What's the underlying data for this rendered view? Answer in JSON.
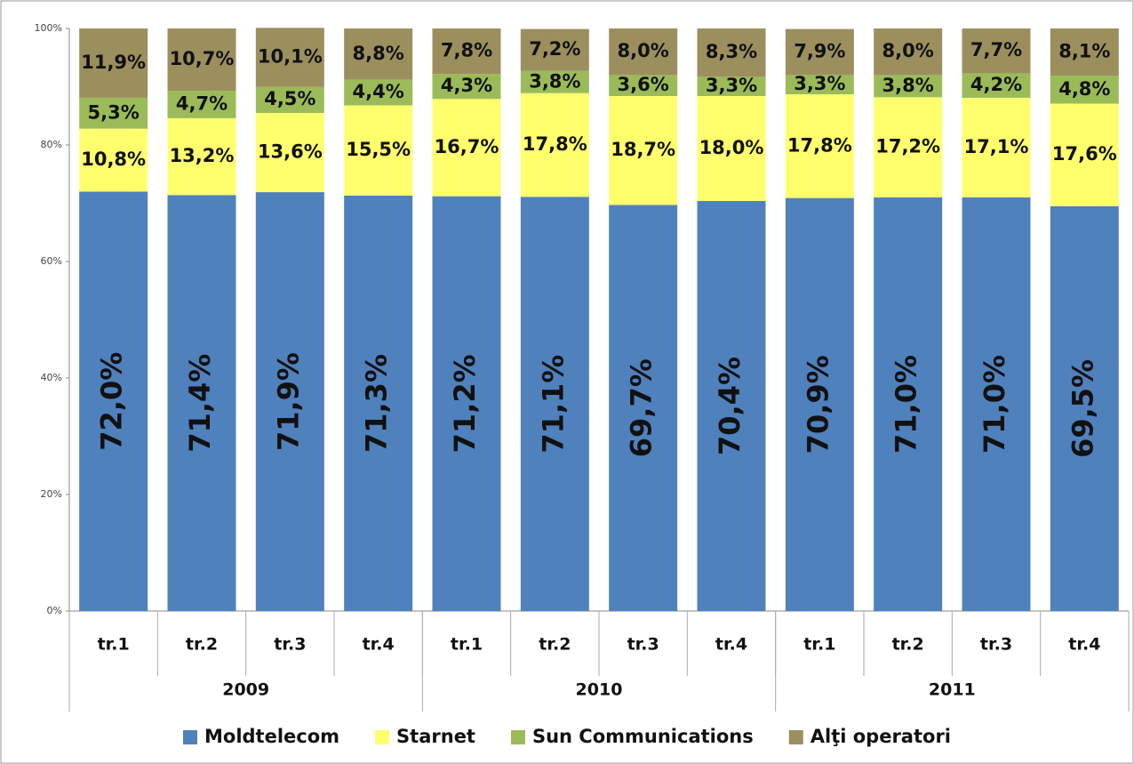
{
  "chart_data": {
    "type": "stacked_bar",
    "categories": [
      "tr.1",
      "tr.2",
      "tr.3",
      "tr.4",
      "tr.1",
      "tr.2",
      "tr.3",
      "tr.4",
      "tr.1",
      "tr.2",
      "tr.3",
      "tr.4"
    ],
    "group_labels": [
      "2009",
      "2010",
      "2011"
    ],
    "ylim": [
      0,
      100
    ],
    "yticks": [
      {
        "value": 0,
        "label": "0%"
      },
      {
        "value": 20,
        "label": "20%"
      },
      {
        "value": 40,
        "label": "40%"
      },
      {
        "value": 60,
        "label": "60%"
      },
      {
        "value": 80,
        "label": "80%"
      },
      {
        "value": 100,
        "label": "100%"
      }
    ],
    "legend": "bottom",
    "series": [
      {
        "name": "Moldtelecom",
        "color": "#4f81bd",
        "values": [
          72.0,
          71.4,
          71.9,
          71.3,
          71.2,
          71.1,
          69.7,
          70.4,
          70.9,
          71.0,
          71.0,
          69.5
        ],
        "value_labels": [
          "72,0%",
          "71,4%",
          "71,9%",
          "71,3%",
          "71,2%",
          "71,1%",
          "69,7%",
          "70,4%",
          "70,9%",
          "71,0%",
          "71,0%",
          "69,5%"
        ]
      },
      {
        "name": "Starnet",
        "color": "#ffff6e",
        "values": [
          10.8,
          13.2,
          13.6,
          15.5,
          16.7,
          17.8,
          18.7,
          18.0,
          17.8,
          17.2,
          17.1,
          17.6
        ],
        "value_labels": [
          "10,8%",
          "13,2%",
          "13,6%",
          "15,5%",
          "16,7%",
          "17,8%",
          "18,7%",
          "18,0%",
          "17,8%",
          "17,2%",
          "17,1%",
          "17,6%"
        ]
      },
      {
        "name": "Sun Communications",
        "color": "#9bbb59",
        "values": [
          5.3,
          4.7,
          4.5,
          4.4,
          4.3,
          3.8,
          3.6,
          3.3,
          3.3,
          3.8,
          4.2,
          4.8
        ],
        "value_labels": [
          "5,3%",
          "4,7%",
          "4,5%",
          "4,4%",
          "4,3%",
          "3,8%",
          "3,6%",
          "3,3%",
          "3,3%",
          "3,8%",
          "4,2%",
          "4,8%"
        ]
      },
      {
        "name": "Alţi operatori",
        "color": "#9c8f5e",
        "values": [
          11.9,
          10.7,
          10.1,
          8.8,
          7.8,
          7.2,
          8.0,
          8.3,
          7.9,
          8.0,
          7.7,
          8.1
        ],
        "value_labels": [
          "11,9%",
          "10,7%",
          "10,1%",
          "8,8%",
          "7,8%",
          "7,2%",
          "8,0%",
          "8,3%",
          "7,9%",
          "8,0%",
          "7,7%",
          "8,1%"
        ]
      }
    ]
  }
}
